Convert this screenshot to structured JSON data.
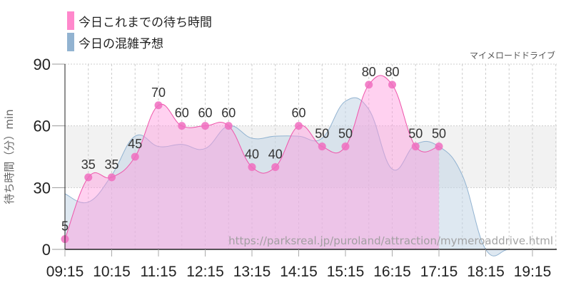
{
  "legend": {
    "items": [
      {
        "label": "今日これまでの待ち時間",
        "color": "#ff88cc"
      },
      {
        "label": "今日の混雑予想",
        "color": "#92b3d1"
      }
    ]
  },
  "brand": "マイメロードドライブ",
  "watermark": "https://parksreal.jp/puroland/attraction/mymeroaddrive.html",
  "colors": {
    "actual_fill": "#ff99dd",
    "actual_line": "#ee55aa",
    "actual_point": "#f06fc0",
    "forecast_fill": "#c3d6e6",
    "forecast_line": "#92b3d1",
    "band": "#f2f2f2"
  },
  "chart_data": {
    "type": "area",
    "title": "",
    "xlabel": "",
    "ylabel": "待ち時間（分）min",
    "ylim": [
      0,
      90
    ],
    "yticks": [
      0,
      30,
      60,
      90
    ],
    "xtick_labels": [
      "09:15",
      "10:15",
      "11:15",
      "12:15",
      "13:15",
      "14:15",
      "15:15",
      "16:15",
      "17:15",
      "18:15",
      "19:15"
    ],
    "x": [
      "09:15",
      "09:45",
      "10:15",
      "10:45",
      "11:15",
      "11:45",
      "12:15",
      "12:45",
      "13:15",
      "13:45",
      "14:15",
      "14:45",
      "15:15",
      "15:45",
      "16:15",
      "16:45",
      "17:15",
      "17:45",
      "18:15",
      "18:45",
      "19:15",
      "19:45"
    ],
    "series": [
      {
        "name": "今日これまでの待ち時間",
        "values": [
          5,
          35,
          35,
          45,
          70,
          60,
          60,
          60,
          40,
          40,
          60,
          50,
          50,
          80,
          80,
          50,
          50,
          null,
          null,
          null,
          null,
          null
        ],
        "labels_shown": true
      },
      {
        "name": "今日の混雑予想",
        "values": [
          27,
          23,
          36,
          55,
          50,
          51,
          49,
          60,
          54,
          55,
          55,
          54,
          72,
          68,
          39,
          51,
          50,
          36,
          0,
          0,
          0,
          0
        ]
      }
    ],
    "bands": [
      {
        "from": 30,
        "to": 60,
        "color": "#f2f2f2"
      }
    ],
    "grid": true,
    "legend_position": "top-left"
  }
}
